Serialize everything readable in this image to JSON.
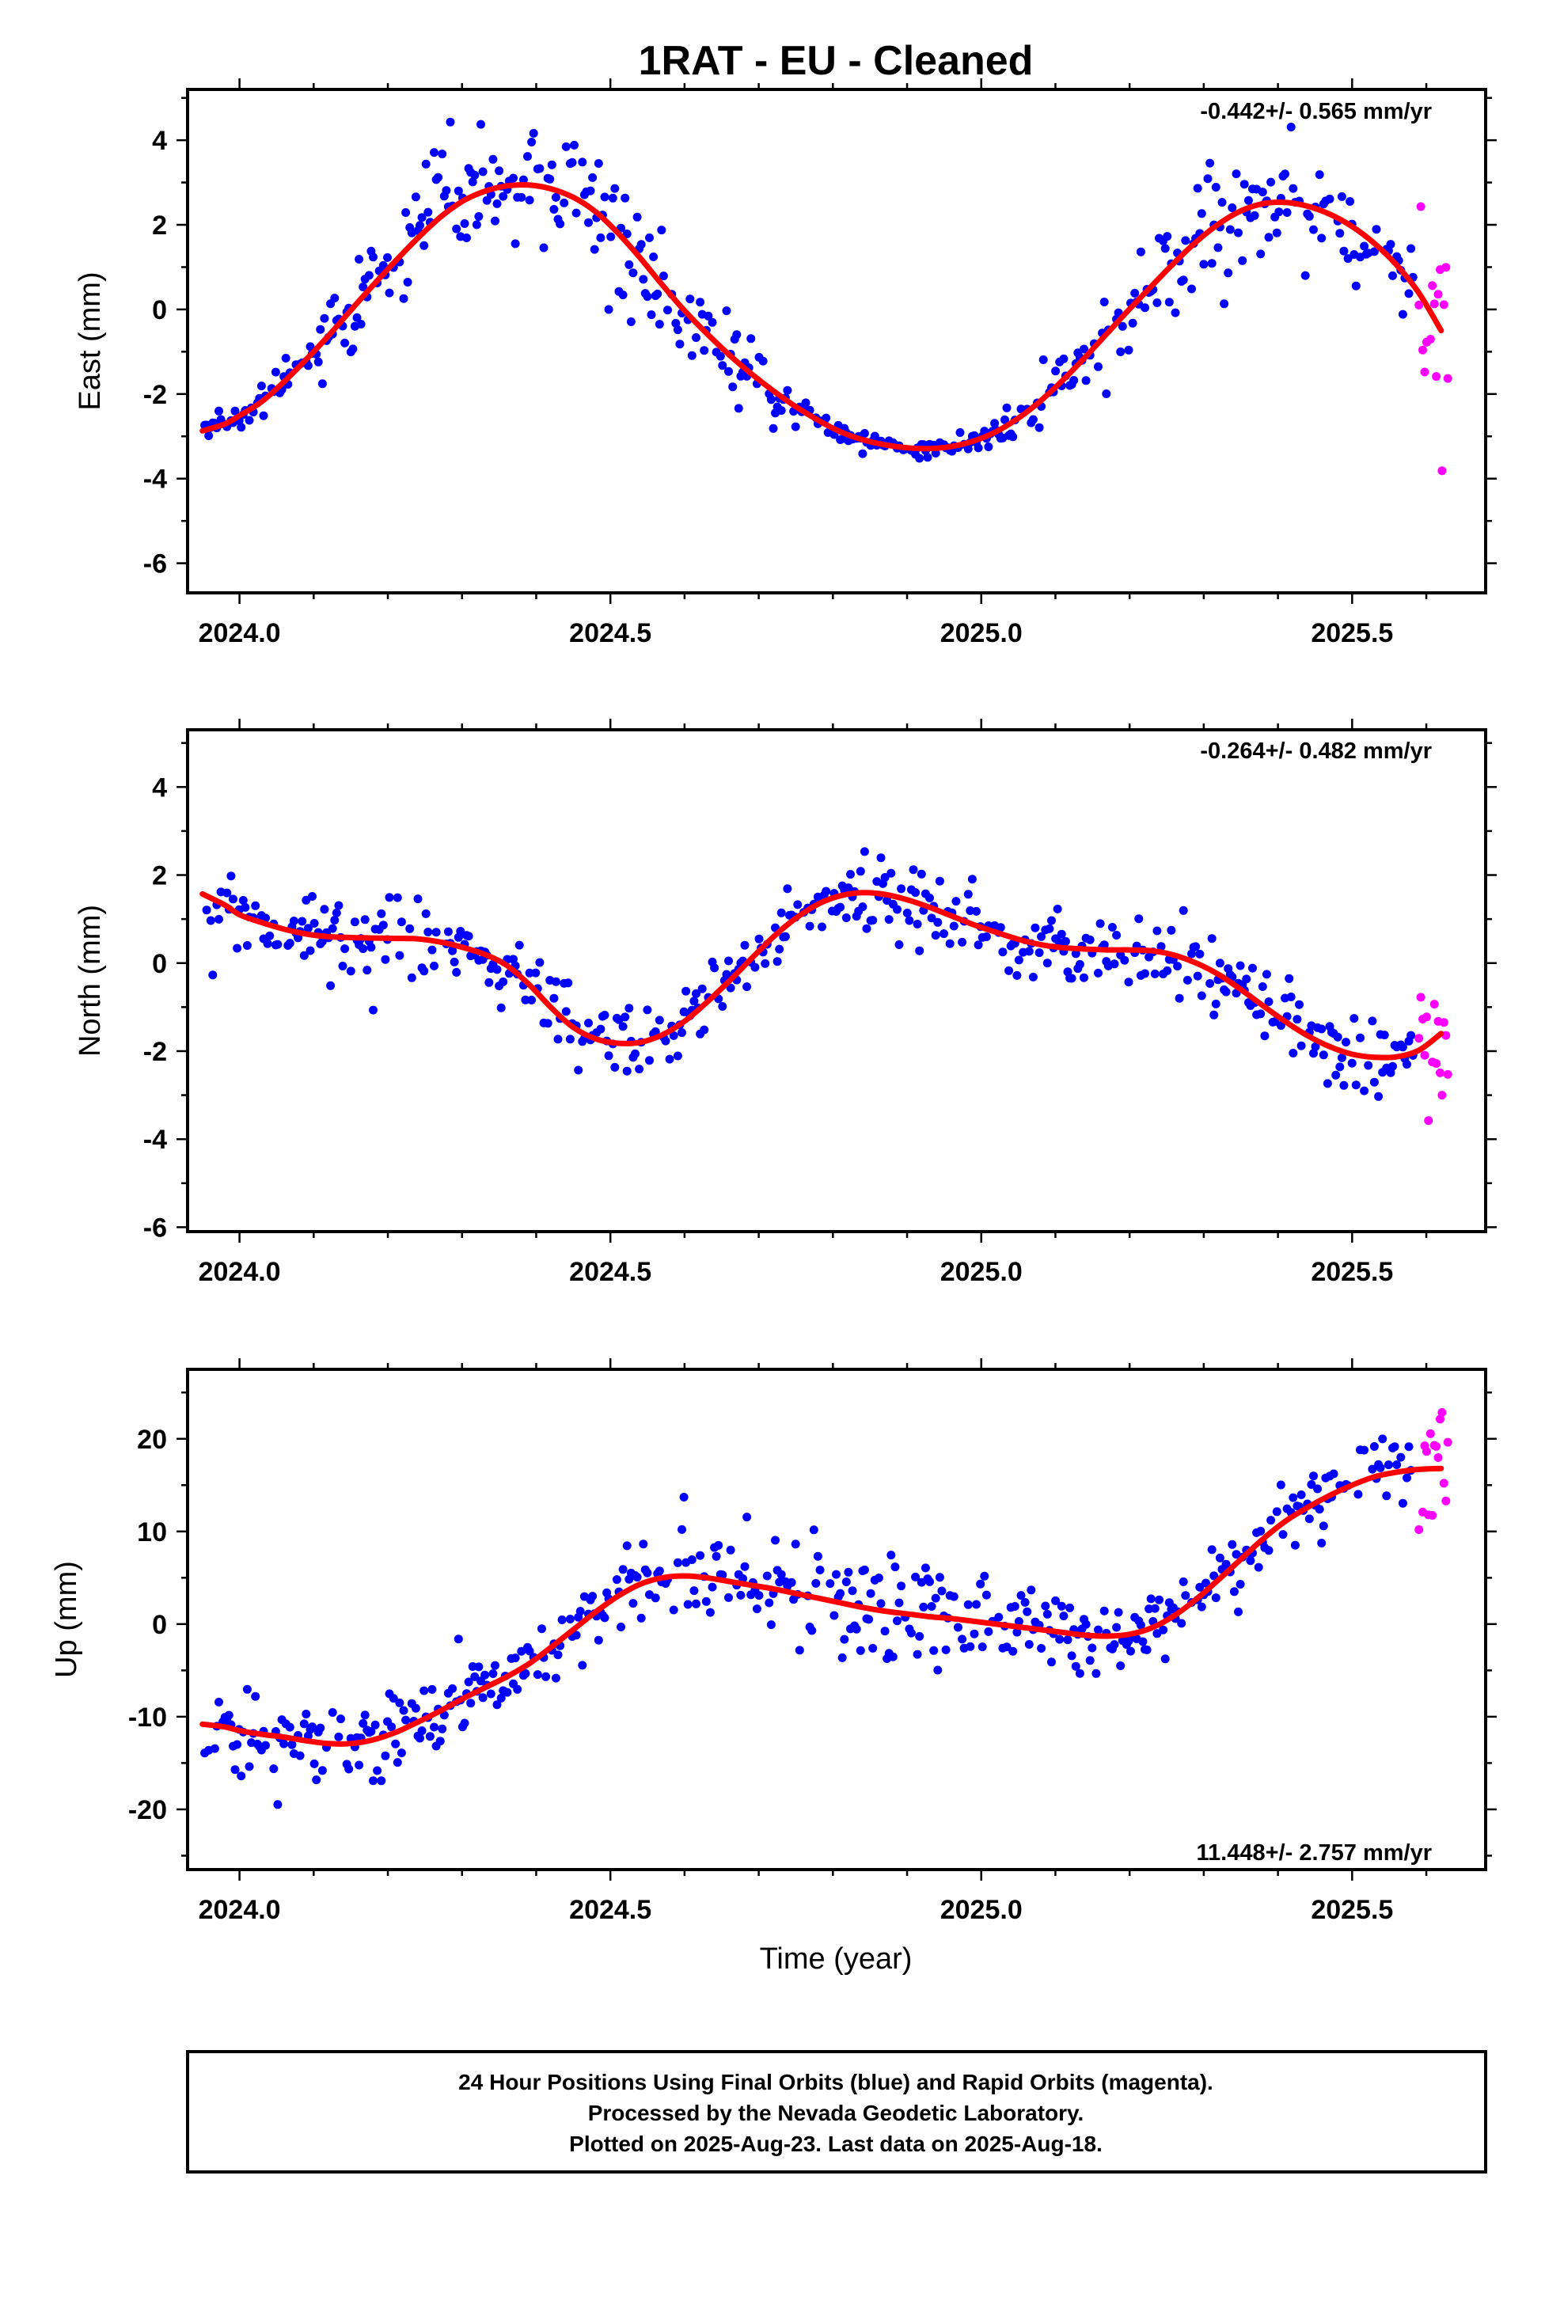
{
  "title": "1RAT  - EU - Cleaned",
  "xlabel": "Time (year)",
  "footer": {
    "line1": "24 Hour Positions Using Final Orbits (blue) and Rapid Orbits (magenta).",
    "line2": "Processed by the Nevada Geodetic Laboratory.",
    "line3": "Plotted on 2025-Aug-23. Last data on 2025-Aug-18."
  },
  "colors": {
    "final": "#0000ff",
    "rapid": "#ff00ff",
    "fit": "#ff0000"
  },
  "chart_data": [
    {
      "type": "scatter",
      "ylabel": "East (mm)",
      "rate_text": "-0.442+/- 0.565 mm/yr",
      "xlim": [
        2023.93,
        2025.68
      ],
      "ylim": [
        -6.7,
        5.2
      ],
      "xticks": [
        "2024.0",
        "2024.5",
        "2025.0",
        "2025.5"
      ],
      "yticks": [
        "-6",
        "-4",
        "-2",
        "0",
        "2",
        "4"
      ],
      "series": [
        {
          "x": [
            2023.95,
            2023.98,
            2024.0,
            2024.03,
            2024.06,
            2024.09,
            2024.12,
            2024.15,
            2024.18,
            2024.21,
            2024.24,
            2024.27,
            2024.3,
            2024.33,
            2024.36,
            2024.39,
            2024.42,
            2024.45,
            2024.48,
            2024.51,
            2024.54,
            2024.57,
            2024.6,
            2024.63,
            2024.66,
            2024.69,
            2024.72,
            2024.75,
            2024.78,
            2024.81,
            2024.84,
            2024.87,
            2024.9,
            2024.93,
            2024.96,
            2024.99,
            2025.02,
            2025.05,
            2025.08,
            2025.11,
            2025.14,
            2025.17,
            2025.2,
            2025.23,
            2025.26,
            2025.29,
            2025.32,
            2025.35,
            2025.38,
            2025.41,
            2025.44,
            2025.47,
            2025.5,
            2025.53,
            2025.56,
            2025.59,
            2025.62
          ],
          "y": [
            -2.87,
            -2.71,
            -2.51,
            -2.18,
            -1.71,
            -1.18,
            -0.62,
            -0.02,
            0.57,
            1.14,
            1.68,
            2.17,
            2.55,
            2.79,
            2.92,
            2.94,
            2.85,
            2.65,
            2.31,
            1.81,
            1.22,
            0.58,
            -0.03,
            -0.57,
            -1.07,
            -1.52,
            -1.93,
            -2.3,
            -2.62,
            -2.89,
            -3.08,
            -3.2,
            -3.27,
            -3.29,
            -3.24,
            -3.11,
            -2.89,
            -2.57,
            -2.16,
            -1.67,
            -1.13,
            -0.56,
            0.01,
            0.56,
            1.1,
            1.6,
            2.02,
            2.33,
            2.5,
            2.53,
            2.44,
            2.25,
            1.96,
            1.56,
            1.05,
            0.39,
            -0.5
          ]
        }
      ]
    },
    {
      "type": "scatter",
      "ylabel": "North (mm)",
      "rate_text": "-0.264+/- 0.482 mm/yr",
      "xlim": [
        2023.93,
        2025.68
      ],
      "ylim": [
        -6.1,
        5.3
      ],
      "xticks": [
        "2024.0",
        "2024.5",
        "2025.0",
        "2025.5"
      ],
      "yticks": [
        "-6",
        "-4",
        "-2",
        "0",
        "2",
        "4"
      ],
      "series": [
        {
          "x": [
            2023.95,
            2023.98,
            2024.0,
            2024.03,
            2024.06,
            2024.09,
            2024.12,
            2024.15,
            2024.18,
            2024.21,
            2024.24,
            2024.27,
            2024.3,
            2024.33,
            2024.36,
            2024.39,
            2024.42,
            2024.45,
            2024.48,
            2024.51,
            2024.54,
            2024.57,
            2024.6,
            2024.63,
            2024.66,
            2024.69,
            2024.72,
            2024.75,
            2024.78,
            2024.81,
            2024.84,
            2024.87,
            2024.9,
            2024.93,
            2024.96,
            2024.99,
            2025.02,
            2025.05,
            2025.08,
            2025.11,
            2025.14,
            2025.17,
            2025.2,
            2025.23,
            2025.26,
            2025.29,
            2025.32,
            2025.35,
            2025.38,
            2025.41,
            2025.44,
            2025.47,
            2025.5,
            2025.53,
            2025.56,
            2025.59,
            2025.62
          ],
          "y": [
            1.57,
            1.32,
            1.1,
            0.92,
            0.77,
            0.66,
            0.6,
            0.58,
            0.57,
            0.56,
            0.55,
            0.48,
            0.36,
            0.2,
            -0.05,
            -0.48,
            -1.01,
            -1.46,
            -1.72,
            -1.82,
            -1.8,
            -1.63,
            -1.32,
            -0.89,
            -0.41,
            0.1,
            0.6,
            1.02,
            1.34,
            1.53,
            1.6,
            1.56,
            1.44,
            1.27,
            1.07,
            0.87,
            0.7,
            0.54,
            0.42,
            0.35,
            0.32,
            0.3,
            0.3,
            0.28,
            0.18,
            0.0,
            -0.26,
            -0.6,
            -0.97,
            -1.33,
            -1.65,
            -1.9,
            -2.07,
            -2.14,
            -2.13,
            -1.98,
            -1.6
          ]
        }
      ]
    },
    {
      "type": "scatter",
      "ylabel": "Up (mm)",
      "rate_text": "11.448+/- 2.757 mm/yr",
      "xlim": [
        2023.93,
        2025.68
      ],
      "ylim": [
        -26.5,
        27.5
      ],
      "xticks": [
        "2024.0",
        "2024.5",
        "2025.0",
        "2025.5"
      ],
      "yticks": [
        "-20",
        "-10",
        "0",
        "10",
        "20"
      ],
      "series": [
        {
          "x": [
            2023.95,
            2023.98,
            2024.0,
            2024.03,
            2024.06,
            2024.09,
            2024.12,
            2024.15,
            2024.18,
            2024.21,
            2024.24,
            2024.27,
            2024.3,
            2024.33,
            2024.36,
            2024.39,
            2024.42,
            2024.45,
            2024.48,
            2024.51,
            2024.54,
            2024.57,
            2024.6,
            2024.63,
            2024.66,
            2024.69,
            2024.72,
            2024.75,
            2024.78,
            2024.81,
            2024.84,
            2024.87,
            2024.9,
            2024.93,
            2024.96,
            2024.99,
            2025.02,
            2025.05,
            2025.08,
            2025.11,
            2025.14,
            2025.17,
            2025.2,
            2025.23,
            2025.26,
            2025.29,
            2025.32,
            2025.35,
            2025.38,
            2025.41,
            2025.44,
            2025.47,
            2025.5,
            2025.53,
            2025.56,
            2025.59,
            2025.62
          ],
          "y": [
            -10.8,
            -11.1,
            -11.5,
            -11.9,
            -12.2,
            -12.6,
            -12.9,
            -12.9,
            -12.5,
            -11.7,
            -10.6,
            -9.4,
            -8.1,
            -6.9,
            -5.7,
            -4.3,
            -2.5,
            -0.6,
            1.3,
            3.0,
            4.3,
            5.0,
            5.2,
            5.0,
            4.6,
            4.2,
            3.8,
            3.3,
            2.8,
            2.3,
            1.8,
            1.4,
            1.1,
            0.8,
            0.6,
            0.3,
            0.0,
            -0.3,
            -0.6,
            -0.9,
            -1.2,
            -1.3,
            -1.1,
            -0.4,
            0.9,
            2.7,
            4.8,
            7.0,
            9.2,
            11.1,
            12.6,
            13.9,
            15.0,
            15.9,
            16.4,
            16.7,
            16.8
          ]
        }
      ]
    }
  ]
}
